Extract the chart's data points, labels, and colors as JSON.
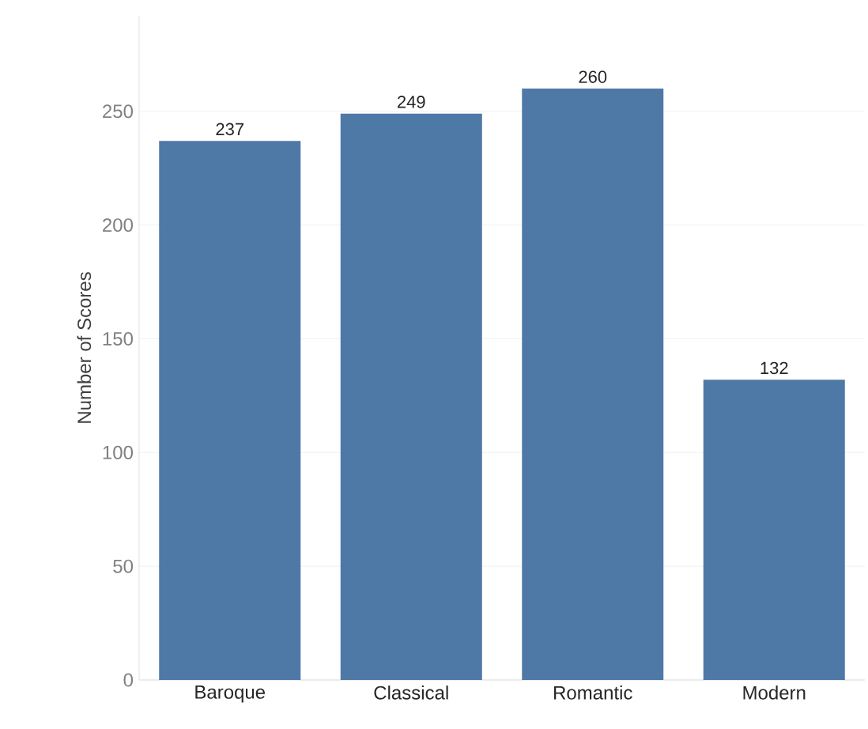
{
  "chart_data": {
    "type": "bar",
    "ylabel": "Number of Scores",
    "categories": [
      "Baroque",
      "Classical",
      "Romantic",
      "Modern"
    ],
    "values": [
      237,
      249,
      260,
      132
    ],
    "color": "#4e79a7",
    "ylim": [
      0,
      292
    ],
    "yticks": [
      0,
      50,
      100,
      150,
      200,
      250
    ],
    "grid": "y",
    "data_labels": true
  }
}
